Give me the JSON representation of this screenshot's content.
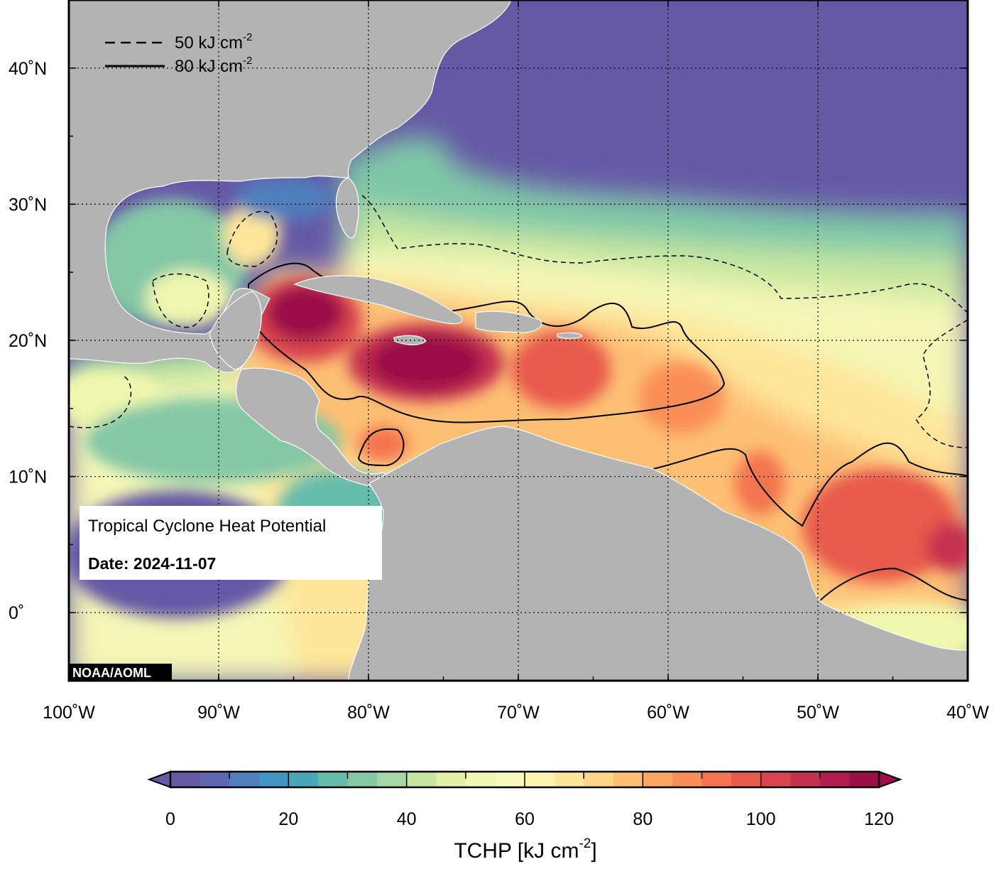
{
  "map": {
    "lon_range": [
      -100,
      -40
    ],
    "lat_range": [
      -5,
      45
    ],
    "lon_labels": [
      {
        "lon": -100,
        "text": "100˚W"
      },
      {
        "lon": -90,
        "text": "90˚W"
      },
      {
        "lon": -80,
        "text": "80˚W"
      },
      {
        "lon": -70,
        "text": "70˚W"
      },
      {
        "lon": -60,
        "text": "60˚W"
      },
      {
        "lon": -50,
        "text": "50˚W"
      },
      {
        "lon": -40,
        "text": "40˚W"
      }
    ],
    "lat_labels": [
      {
        "lat": 40,
        "text": "40˚N"
      },
      {
        "lat": 30,
        "text": "30˚N"
      },
      {
        "lat": 20,
        "text": "20˚N"
      },
      {
        "lat": 10,
        "text": "10˚N"
      },
      {
        "lat": 0,
        "text": "0˚"
      }
    ],
    "grid": true,
    "land_color": "#b3b3b3",
    "ocean_base_color": "#6559a6"
  },
  "legend": {
    "dashed_label": "50 kJ cm",
    "solid_label": "80 kJ cm",
    "unit_exponent": "-2"
  },
  "info_box": {
    "title": "Tropical Cyclone Heat Potential",
    "date_label": "Date: 2024-11-07"
  },
  "credit": "NOAA/AOML",
  "colorbar": {
    "min": 0,
    "max": 120,
    "step": 5,
    "ticks": [
      "0",
      "20",
      "40",
      "60",
      "80",
      "100",
      "120"
    ],
    "title": "TCHP [kJ cm",
    "title_exponent": "-2",
    "title_close": "]",
    "colors": [
      "#6559a6",
      "#5e68b0",
      "#4f7fbc",
      "#3f95c4",
      "#4aa7bb",
      "#66bcab",
      "#84c8a6",
      "#a7d7a4",
      "#c6e6a0",
      "#e1f2a4",
      "#f0f7ae",
      "#f8f9bb",
      "#fff4b0",
      "#fee69a",
      "#fed485",
      "#fdbf73",
      "#fca864",
      "#f98f57",
      "#f3744d",
      "#e85a4b",
      "#d9444e",
      "#c6304f",
      "#b01d4e",
      "#9c0e48"
    ]
  }
}
